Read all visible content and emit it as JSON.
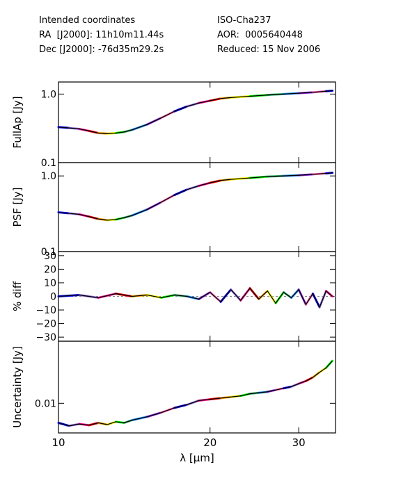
{
  "header": {
    "left": [
      "Intended coordinates",
      "RA  [J2000]: 11h10m11.44s",
      "Dec [J2000]: -76d35m29.2s"
    ],
    "right": [
      "ISO-Cha237",
      "AOR:  0005640448",
      "Reduced: 15 Nov 2006"
    ]
  },
  "chart_data": {
    "type": "line",
    "xlabel": "λ [μm]",
    "x_scale": "log",
    "xlim": [
      10,
      35.5
    ],
    "x_ticks": [
      10,
      20,
      30
    ],
    "x_ticklabels": [
      "10",
      "20",
      "30"
    ],
    "order_colors": [
      "#0000ff",
      "#9370db",
      "#ff1493",
      "#ff0000",
      "#ffa500",
      "#ffff00",
      "#00ff00",
      "#3cb371",
      "#1e90ff",
      "#8a2be2",
      "#ff69b4"
    ],
    "series_color": "#000000",
    "panels": [
      {
        "id": "fullap",
        "ylabel": "FullAp [Jy]",
        "y_scale": "log",
        "ylim": [
          0.1,
          1.5
        ],
        "y_ticklabels": [
          "0.1",
          "1.0"
        ],
        "y_ticks": [
          0.1,
          1.0
        ],
        "points": [
          [
            10,
            0.33
          ],
          [
            10.5,
            0.32
          ],
          [
            11,
            0.31
          ],
          [
            11.5,
            0.29
          ],
          [
            12,
            0.27
          ],
          [
            12.5,
            0.265
          ],
          [
            13,
            0.27
          ],
          [
            13.5,
            0.28
          ],
          [
            14,
            0.3
          ],
          [
            15,
            0.36
          ],
          [
            16,
            0.45
          ],
          [
            17,
            0.56
          ],
          [
            18,
            0.66
          ],
          [
            19,
            0.74
          ],
          [
            20,
            0.8
          ],
          [
            21,
            0.86
          ],
          [
            22,
            0.89
          ],
          [
            24,
            0.93
          ],
          [
            26,
            0.97
          ],
          [
            28,
            1.0
          ],
          [
            30,
            1.03
          ],
          [
            32,
            1.06
          ],
          [
            34,
            1.1
          ],
          [
            35,
            1.12
          ]
        ]
      },
      {
        "id": "psf",
        "ylabel": "PSF [Jy]",
        "y_scale": "log",
        "ylim": [
          0.1,
          1.5
        ],
        "y_ticklabels": [
          "0.1",
          "1.0"
        ],
        "y_ticks": [
          0.1,
          1.0
        ],
        "points": [
          [
            10,
            0.33
          ],
          [
            10.5,
            0.32
          ],
          [
            11,
            0.31
          ],
          [
            11.5,
            0.29
          ],
          [
            12,
            0.27
          ],
          [
            12.5,
            0.26
          ],
          [
            13,
            0.265
          ],
          [
            13.5,
            0.28
          ],
          [
            14,
            0.3
          ],
          [
            15,
            0.36
          ],
          [
            16,
            0.45
          ],
          [
            17,
            0.56
          ],
          [
            18,
            0.66
          ],
          [
            19,
            0.74
          ],
          [
            20,
            0.81
          ],
          [
            21,
            0.87
          ],
          [
            22,
            0.9
          ],
          [
            24,
            0.94
          ],
          [
            26,
            0.98
          ],
          [
            28,
            1.0
          ],
          [
            30,
            1.02
          ],
          [
            32,
            1.05
          ],
          [
            34,
            1.08
          ],
          [
            35,
            1.1
          ]
        ]
      },
      {
        "id": "pctdiff",
        "ylabel": "% diff",
        "y_scale": "linear",
        "ylim": [
          -33,
          33
        ],
        "y_ticklabels": [
          "−30",
          "−20",
          "−10",
          "0",
          "10",
          "20",
          "30"
        ],
        "y_ticks": [
          -30,
          -20,
          -10,
          0,
          10,
          20,
          30
        ],
        "points": [
          [
            10,
            0
          ],
          [
            11,
            1
          ],
          [
            12,
            -1
          ],
          [
            13,
            2
          ],
          [
            14,
            0
          ],
          [
            15,
            1
          ],
          [
            16,
            -1
          ],
          [
            17,
            1
          ],
          [
            18,
            0
          ],
          [
            19,
            -2
          ],
          [
            20,
            3
          ],
          [
            21,
            -4
          ],
          [
            22,
            5
          ],
          [
            23,
            -3
          ],
          [
            24,
            6
          ],
          [
            25,
            -2
          ],
          [
            26,
            4
          ],
          [
            27,
            -5
          ],
          [
            28,
            3
          ],
          [
            29,
            -1
          ],
          [
            30,
            5
          ],
          [
            31,
            -6
          ],
          [
            32,
            2
          ],
          [
            33,
            -8
          ],
          [
            34,
            4
          ],
          [
            35,
            0
          ]
        ]
      },
      {
        "id": "uncertainty",
        "ylabel": "Uncertainty [Jy]",
        "y_scale": "log",
        "ylim": [
          0.0035,
          0.09
        ],
        "y_ticklabels": [
          "0.01"
        ],
        "y_ticks": [
          0.01
        ],
        "points": [
          [
            10,
            0.005
          ],
          [
            10.5,
            0.0045
          ],
          [
            11,
            0.0048
          ],
          [
            11.5,
            0.0046
          ],
          [
            12,
            0.005
          ],
          [
            12.5,
            0.0047
          ],
          [
            13,
            0.0052
          ],
          [
            13.5,
            0.005
          ],
          [
            14,
            0.0055
          ],
          [
            15,
            0.0062
          ],
          [
            16,
            0.0072
          ],
          [
            17,
            0.0085
          ],
          [
            18,
            0.0095
          ],
          [
            19,
            0.011
          ],
          [
            20,
            0.0115
          ],
          [
            21,
            0.012
          ],
          [
            22,
            0.0125
          ],
          [
            23,
            0.013
          ],
          [
            24,
            0.014
          ],
          [
            25,
            0.0145
          ],
          [
            26,
            0.015
          ],
          [
            27,
            0.016
          ],
          [
            28,
            0.017
          ],
          [
            29,
            0.018
          ],
          [
            30,
            0.02
          ],
          [
            31,
            0.022
          ],
          [
            32,
            0.025
          ],
          [
            33,
            0.03
          ],
          [
            34,
            0.035
          ],
          [
            35,
            0.045
          ]
        ]
      }
    ]
  }
}
